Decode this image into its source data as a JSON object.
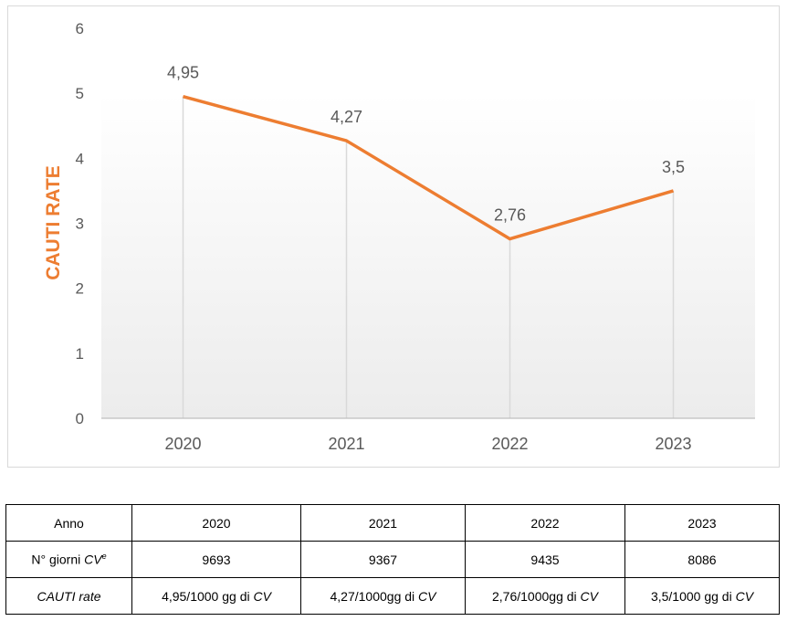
{
  "colors": {
    "line": "#ed7d31",
    "grid": "#d9d9d9",
    "axis": "#bfbfbf",
    "text": "#595959"
  },
  "chart_data": {
    "type": "line",
    "title": "",
    "xlabel": "",
    "ylabel": "CAUTI RATE",
    "categories": [
      "2020",
      "2021",
      "2022",
      "2023"
    ],
    "series": [
      {
        "values": [
          4.95,
          4.27,
          2.76,
          3.5
        ],
        "labels": [
          "4,95",
          "4,27",
          "2,76",
          "3,5"
        ]
      }
    ],
    "ylim": [
      0,
      6
    ],
    "yticks": [
      "0",
      "1",
      "2",
      "3",
      "4",
      "5",
      "6"
    ],
    "grid": "vertical drop lines",
    "legend": "none"
  },
  "table": {
    "rows": [
      {
        "label": "Anno",
        "values": [
          "2020",
          "2021",
          "2022",
          "2023"
        ]
      },
      {
        "label_text": "N° giorni ",
        "label_italic": "CV",
        "label_sup": "e",
        "values": [
          "9693",
          "9367",
          "9435",
          "8086"
        ]
      },
      {
        "label_italic_full": "CAUTI rate",
        "values": [
          {
            "text": "4,95/1000 gg di ",
            "italic": "CV"
          },
          {
            "text": "4,27/1000gg di ",
            "italic": "CV"
          },
          {
            "text": "2,76/1000gg di ",
            "italic": "CV"
          },
          {
            "text": "3,5/1000 gg di ",
            "italic": "CV"
          }
        ]
      }
    ]
  }
}
